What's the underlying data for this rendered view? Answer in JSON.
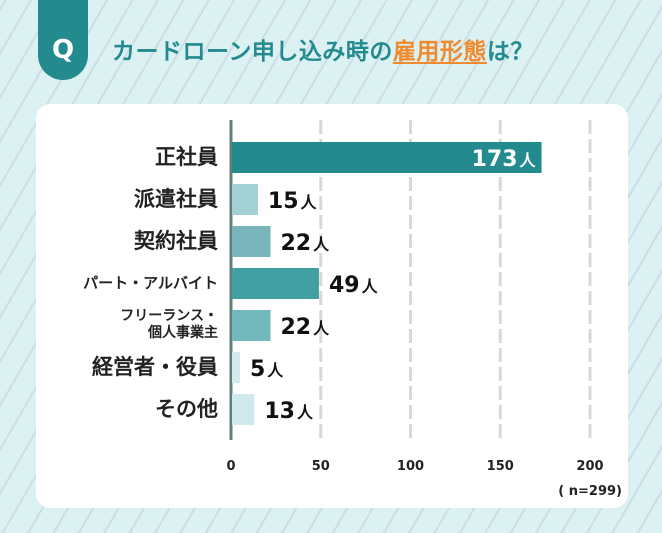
{
  "header": {
    "badge": "Q",
    "title_pre": "カードローン申し込み時の",
    "title_highlight": "雇用形態",
    "title_post": "は？"
  },
  "colors": {
    "accent": "#238a8e",
    "highlight": "#f08a2c"
  },
  "chart_data": {
    "type": "bar",
    "orientation": "horizontal",
    "title": "カードローン申し込み時の雇用形態は？",
    "categories": [
      "正社員",
      "派遣社員",
      "契約社員",
      "パート・アルバイト",
      "フリーランス・個人事業主",
      "経営者・役員",
      "その他"
    ],
    "category_lines": [
      [
        "正社員"
      ],
      [
        "派遣社員"
      ],
      [
        "契約社員"
      ],
      [
        "パート・アルバイト"
      ],
      [
        "フリーランス・",
        "個人事業主"
      ],
      [
        "経営者・役員"
      ],
      [
        "その他"
      ]
    ],
    "values": [
      173,
      15,
      22,
      49,
      22,
      5,
      13
    ],
    "value_labels": [
      "173",
      "15",
      "22",
      "49",
      "22",
      "5",
      "13"
    ],
    "unit": "人",
    "bar_colors": [
      "#238a8e",
      "#a3d0d3",
      "#7ab5bb",
      "#42a0a2",
      "#73b8bd",
      "#d3ebed",
      "#cfe9ec"
    ],
    "xlim": [
      0,
      200
    ],
    "xticks": [
      "0",
      "50",
      "100",
      "150",
      "200"
    ],
    "grid": true,
    "note": "( n=299)"
  }
}
